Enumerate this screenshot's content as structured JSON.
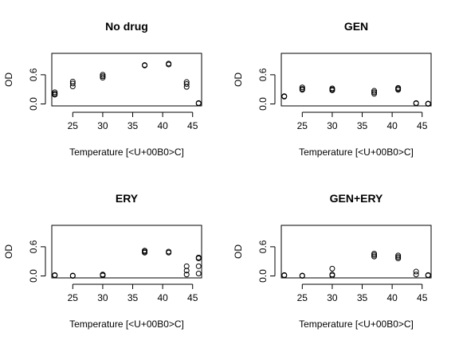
{
  "chart_data": [
    {
      "type": "scatter",
      "title": "No drug",
      "xlabel": "Temperature [<U+00B0>C]",
      "ylabel": "OD",
      "xticks": [
        25,
        30,
        35,
        40,
        45
      ],
      "yticks": [
        0.0,
        0.6
      ],
      "ytick_labels": [
        "0.0",
        "0.6"
      ],
      "xlim": [
        21.5,
        46.5
      ],
      "ylim": [
        -0.04,
        1.04
      ],
      "points": [
        {
          "x": 22,
          "y": 0.24
        },
        {
          "x": 22,
          "y": 0.21
        },
        {
          "x": 22,
          "y": 0.19
        },
        {
          "x": 25,
          "y": 0.46
        },
        {
          "x": 25,
          "y": 0.42
        },
        {
          "x": 25,
          "y": 0.36
        },
        {
          "x": 30,
          "y": 0.6
        },
        {
          "x": 30,
          "y": 0.57
        },
        {
          "x": 30,
          "y": 0.54
        },
        {
          "x": 37,
          "y": 0.8
        },
        {
          "x": 37,
          "y": 0.79
        },
        {
          "x": 41,
          "y": 0.83
        },
        {
          "x": 41,
          "y": 0.81
        },
        {
          "x": 44,
          "y": 0.45
        },
        {
          "x": 44,
          "y": 0.41
        },
        {
          "x": 44,
          "y": 0.35
        },
        {
          "x": 46,
          "y": 0.02
        },
        {
          "x": 46,
          "y": 0.01
        }
      ]
    },
    {
      "type": "scatter",
      "title": "GEN",
      "xlabel": "Temperature [<U+00B0>C]",
      "ylabel": "OD",
      "xticks": [
        25,
        30,
        35,
        40,
        45
      ],
      "yticks": [
        0.0,
        0.6
      ],
      "ytick_labels": [
        "0.0",
        "0.6"
      ],
      "xlim": [
        21.5,
        46.5
      ],
      "ylim": [
        -0.04,
        1.04
      ],
      "points": [
        {
          "x": 22,
          "y": 0.16
        },
        {
          "x": 22,
          "y": 0.15
        },
        {
          "x": 25,
          "y": 0.34
        },
        {
          "x": 25,
          "y": 0.31
        },
        {
          "x": 25,
          "y": 0.29
        },
        {
          "x": 30,
          "y": 0.32
        },
        {
          "x": 30,
          "y": 0.3
        },
        {
          "x": 30,
          "y": 0.28
        },
        {
          "x": 37,
          "y": 0.27
        },
        {
          "x": 37,
          "y": 0.24
        },
        {
          "x": 37,
          "y": 0.21
        },
        {
          "x": 41,
          "y": 0.33
        },
        {
          "x": 41,
          "y": 0.31
        },
        {
          "x": 41,
          "y": 0.29
        },
        {
          "x": 44,
          "y": 0.02
        },
        {
          "x": 44,
          "y": 0.01
        },
        {
          "x": 46,
          "y": 0.01
        },
        {
          "x": 46,
          "y": 0.0
        }
      ]
    },
    {
      "type": "scatter",
      "title": "ERY",
      "xlabel": "Temperature [<U+00B0>C]",
      "ylabel": "OD",
      "xticks": [
        25,
        30,
        35,
        40,
        45
      ],
      "yticks": [
        0.0,
        0.6
      ],
      "ytick_labels": [
        "0.0",
        "0.6"
      ],
      "xlim": [
        21.5,
        46.5
      ],
      "ylim": [
        -0.04,
        1.04
      ],
      "points": [
        {
          "x": 22,
          "y": 0.02
        },
        {
          "x": 22,
          "y": 0.01
        },
        {
          "x": 25,
          "y": 0.01
        },
        {
          "x": 25,
          "y": 0.0
        },
        {
          "x": 30,
          "y": 0.03
        },
        {
          "x": 30,
          "y": 0.02
        },
        {
          "x": 30,
          "y": 0.01
        },
        {
          "x": 37,
          "y": 0.52
        },
        {
          "x": 37,
          "y": 0.5
        },
        {
          "x": 37,
          "y": 0.48
        },
        {
          "x": 41,
          "y": 0.5
        },
        {
          "x": 41,
          "y": 0.48
        },
        {
          "x": 44,
          "y": 0.2
        },
        {
          "x": 44,
          "y": 0.11
        },
        {
          "x": 44,
          "y": 0.03
        },
        {
          "x": 46,
          "y": 0.38
        },
        {
          "x": 46,
          "y": 0.36
        },
        {
          "x": 46,
          "y": 0.2
        },
        {
          "x": 46,
          "y": 0.05
        }
      ]
    },
    {
      "type": "scatter",
      "title": "GEN+ERY",
      "xlabel": "Temperature [<U+00B0>C]",
      "ylabel": "OD",
      "xticks": [
        25,
        30,
        35,
        40,
        45
      ],
      "yticks": [
        0.0,
        0.6
      ],
      "ytick_labels": [
        "0.0",
        "0.6"
      ],
      "xlim": [
        21.5,
        46.5
      ],
      "ylim": [
        -0.04,
        1.04
      ],
      "points": [
        {
          "x": 22,
          "y": 0.02
        },
        {
          "x": 22,
          "y": 0.01
        },
        {
          "x": 25,
          "y": 0.01
        },
        {
          "x": 25,
          "y": 0.0
        },
        {
          "x": 30,
          "y": 0.15
        },
        {
          "x": 30,
          "y": 0.03
        },
        {
          "x": 30,
          "y": 0.01
        },
        {
          "x": 37,
          "y": 0.46
        },
        {
          "x": 37,
          "y": 0.43
        },
        {
          "x": 37,
          "y": 0.4
        },
        {
          "x": 41,
          "y": 0.42
        },
        {
          "x": 41,
          "y": 0.39
        },
        {
          "x": 41,
          "y": 0.36
        },
        {
          "x": 44,
          "y": 0.09
        },
        {
          "x": 44,
          "y": 0.03
        },
        {
          "x": 46,
          "y": 0.02
        },
        {
          "x": 46,
          "y": 0.01
        }
      ]
    }
  ]
}
